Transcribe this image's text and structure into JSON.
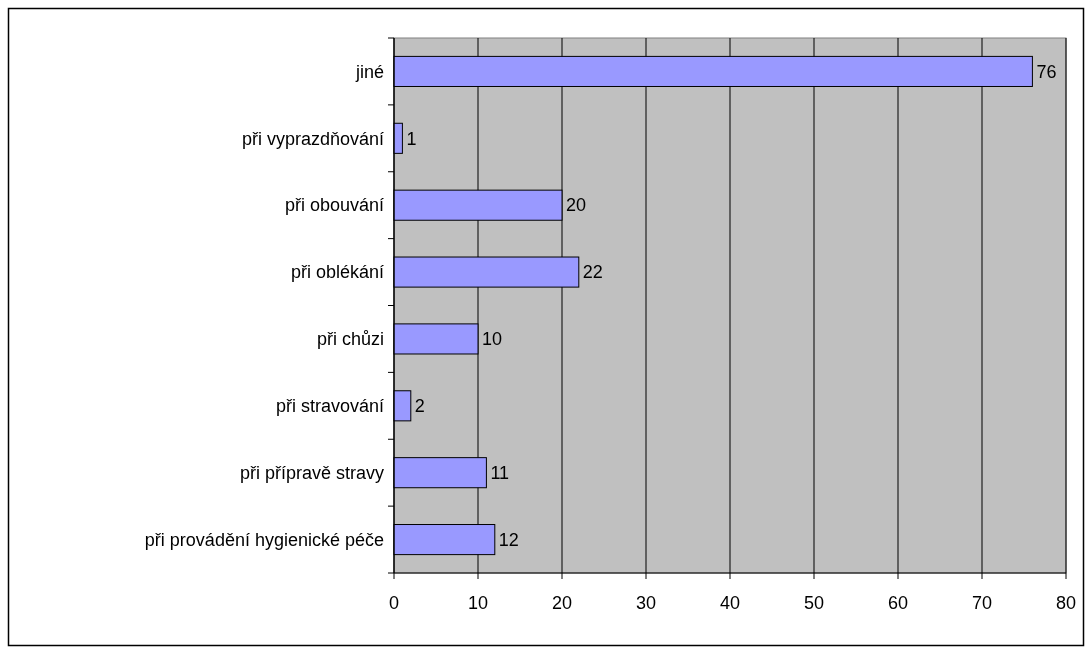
{
  "chart_data": {
    "type": "bar",
    "orientation": "horizontal",
    "categories": [
      "jiné",
      "při vyprazdňování",
      "při obouvání",
      "při oblékání",
      "při chůzi",
      "při stravování",
      "při přípravě stravy",
      "při provádění hygienické péče"
    ],
    "values": [
      76,
      1,
      20,
      22,
      10,
      2,
      11,
      12
    ],
    "color": "#9999ff",
    "xlim": [
      0,
      80
    ],
    "xticks": [
      0,
      10,
      20,
      30,
      40,
      50,
      60,
      70,
      80
    ],
    "grid": "x",
    "data_labels": true
  }
}
